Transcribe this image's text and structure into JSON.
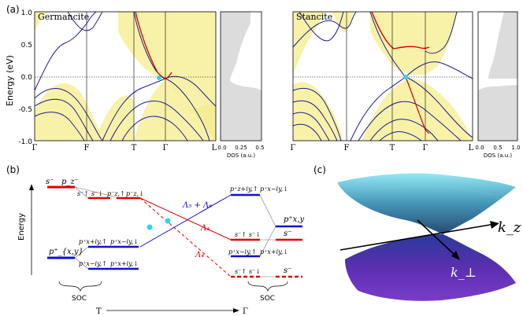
{
  "panel_a": {
    "label": "(a)",
    "ylabel": "Energy (eV)",
    "yticks": [
      "1.0",
      "0.5",
      "0.0",
      "-0.5",
      "-1.0"
    ],
    "germancite": {
      "title": "Germancite",
      "xticks": [
        "Γ",
        "F",
        "T",
        "Γ",
        "L"
      ]
    },
    "stancite": {
      "title": "Stancite",
      "xticks": [
        "Γ",
        "F",
        "T",
        "Γ",
        "L"
      ]
    },
    "dos_germancite": {
      "xticks": [
        "0.0",
        "0.25",
        "0.5"
      ],
      "xlabel": "DOS (a.u.)"
    },
    "dos_stancite": {
      "xticks": [
        "0.0",
        "0.5",
        "1.0"
      ],
      "xlabel": "DOS (a.u.)"
    }
  },
  "panel_b": {
    "label": "(b)",
    "ylabel": "Energy",
    "left_levels": {
      "s_minus": "s⁻",
      "pz_minus": "p_z⁻",
      "p_xy_plus": "p⁺_{x,y}"
    },
    "left_soc": {
      "top_pair": [
        "s⁻↑",
        "s⁻↓",
        "p⁻z,↑",
        "p⁻z,↓"
      ],
      "mid_pair": [
        "p⁺x+iy,↑",
        "p⁺x−iy,↓"
      ],
      "low_pair": [
        "p⁺x−iy,↑",
        "p⁺x+iy,↓"
      ]
    },
    "lines": {
      "blue_label": "Λ₅ + Λ₆",
      "red_label": "Λ₄",
      "red_dashed_label": "Λ₄"
    },
    "right_levels": {
      "top": [
        "p⁺z+iy,↑",
        "p⁺x−iy,↓"
      ],
      "mid": [
        "s⁻↑",
        "s⁻↓"
      ],
      "low": [
        "p⁺x−iy,↑",
        "p⁺x+iy,↓"
      ],
      "bottom": [
        "s⁻↑",
        "s⁻↓"
      ],
      "outer_p": "p⁺x,y",
      "outer_s": "s⁻",
      "outer_s2": "s⁻"
    },
    "soc_labels": [
      "SOC",
      "SOC"
    ],
    "xaxis": {
      "start": "T",
      "end": "Γ"
    }
  },
  "panel_c": {
    "label": "(c)",
    "kz": "k_z",
    "kperp": "k_⊥"
  },
  "colors": {
    "band_blue": "#1d1d8f",
    "band_red": "#d40000",
    "fill_yellow": "#f8f2a8",
    "dirac_cyan": "#2ad7e8",
    "dos_gray": "#dcdcdc",
    "level_red": "#e00000",
    "level_blue": "#1010d0"
  }
}
